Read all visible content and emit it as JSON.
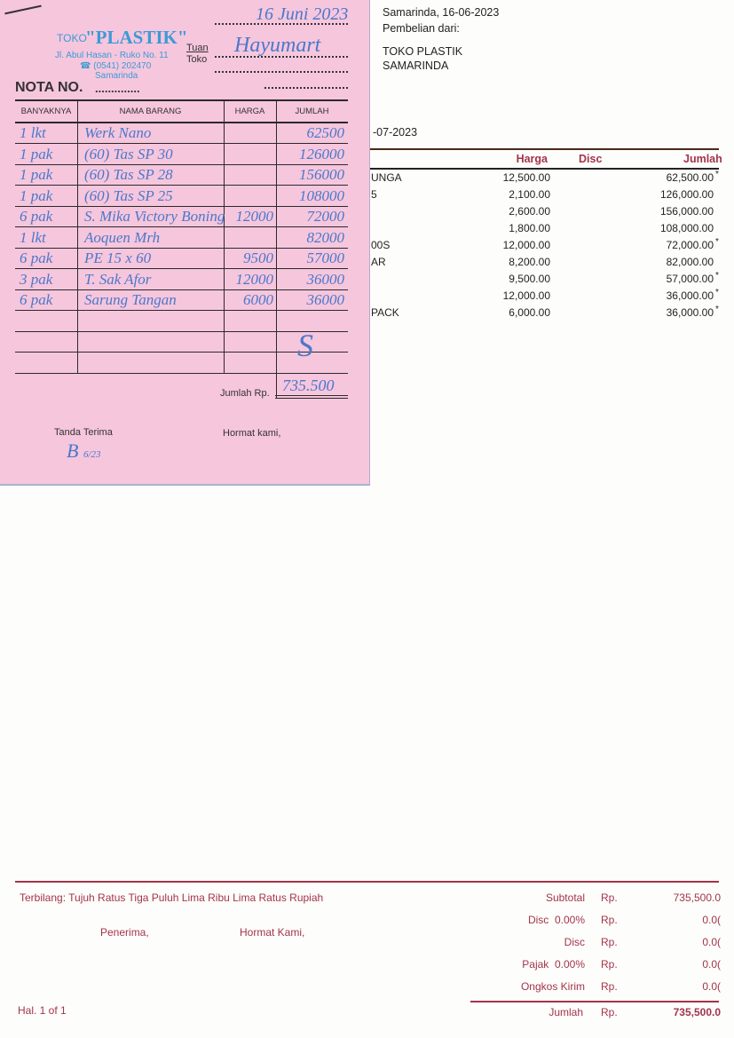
{
  "receipt": {
    "shop_prefix": "TOKO",
    "shop_name": "\"PLASTIK\"",
    "address": "Jl. Abul Hasan - Ruko No. 11",
    "phone": "☎ (0541) 202470",
    "city": "Samarinda",
    "tuan_label": "Tuan",
    "toko_label": "Toko",
    "date_handwritten": "16 Juni 2023",
    "customer_handwritten": "Hayumart",
    "nota_label": "NOTA NO.",
    "nota_dots": "..............",
    "columns": [
      "BANYAKNYA",
      "NAMA BARANG",
      "HARGA",
      "JUMLAH"
    ],
    "rows": [
      {
        "qty": "1 lkt",
        "name": "Werk Nano",
        "price": "",
        "total": "62500"
      },
      {
        "qty": "1 pak",
        "name": "(60) Tas SP 30",
        "price": "",
        "total": "126000"
      },
      {
        "qty": "1 pak",
        "name": "(60) Tas SP 28",
        "price": "",
        "total": "156000"
      },
      {
        "qty": "1 pak",
        "name": "(60) Tas SP 25",
        "price": "",
        "total": "108000"
      },
      {
        "qty": "6 pak",
        "name": "S. Mika Victory Boning",
        "price": "12000",
        "total": "72000"
      },
      {
        "qty": "1 lkt",
        "name": "Aoquen Mrh",
        "price": "",
        "total": "82000"
      },
      {
        "qty": "6 pak",
        "name": "PE 15 x 60",
        "price": "9500",
        "total": "57000"
      },
      {
        "qty": "3 pak",
        "name": "T. Sak Afor",
        "price": "12000",
        "total": "36000"
      },
      {
        "qty": "6 pak",
        "name": "Sarung Tangan",
        "price": "6000",
        "total": "36000"
      }
    ],
    "total_label": "Jumlah Rp.",
    "total_handwritten": "735.500",
    "tanda_terima": "Tanda Terima",
    "hormat_kami": "Hormat kami,"
  },
  "invoice": {
    "place_date": "Samarinda, 16-06-2023",
    "purchase_from_label": "Pembelian dari:",
    "supplier_name": "TOKO PLASTIK",
    "supplier_city": "SAMARINDA",
    "due_date_partial": "-07-2023",
    "columns": {
      "harga": "Harga",
      "disc": "Disc",
      "jumlah": "Jumlah"
    },
    "rows": [
      {
        "name": "UNGA",
        "harga": "12,500.00",
        "jumlah": "62,500.00",
        "mark": "*"
      },
      {
        "name": "5",
        "harga": "2,100.00",
        "jumlah": "126,000.00",
        "mark": ""
      },
      {
        "name": "",
        "harga": "2,600.00",
        "jumlah": "156,000.00",
        "mark": ""
      },
      {
        "name": "",
        "harga": "1,800.00",
        "jumlah": "108,000.00",
        "mark": ""
      },
      {
        "name": "00S",
        "harga": "12,000.00",
        "jumlah": "72,000.00",
        "mark": "*"
      },
      {
        "name": "AR",
        "harga": "8,200.00",
        "jumlah": "82,000.00",
        "mark": ""
      },
      {
        "name": "",
        "harga": "9,500.00",
        "jumlah": "57,000.00",
        "mark": "*"
      },
      {
        "name": "",
        "harga": "12,000.00",
        "jumlah": "36,000.00",
        "mark": "*"
      },
      {
        "name": "PACK",
        "harga": "6,000.00",
        "jumlah": "36,000.00",
        "mark": "*"
      }
    ],
    "terbilang": "Terbilang: Tujuh Ratus Tiga Puluh Lima Ribu Lima Ratus Rupiah",
    "penerima": "Penerima,",
    "hormat_kami": "Hormat Kami,",
    "page": "Hal. 1 of 1",
    "summary": [
      {
        "label": "Subtotal",
        "cur": "Rp.",
        "value": "735,500.0"
      },
      {
        "label": "Disc  0.00%",
        "cur": "Rp.",
        "value": "0.0("
      },
      {
        "label": "Disc",
        "cur": "Rp.",
        "value": "0.0("
      },
      {
        "label": "Pajak  0.00%",
        "cur": "Rp.",
        "value": "0.0("
      },
      {
        "label": "Ongkos Kirim",
        "cur": "Rp.",
        "value": "0.0("
      }
    ],
    "grand_total": {
      "label": "Jumlah",
      "cur": "Rp.",
      "value": "735,500.0"
    },
    "accent_color": "#a3344a"
  }
}
